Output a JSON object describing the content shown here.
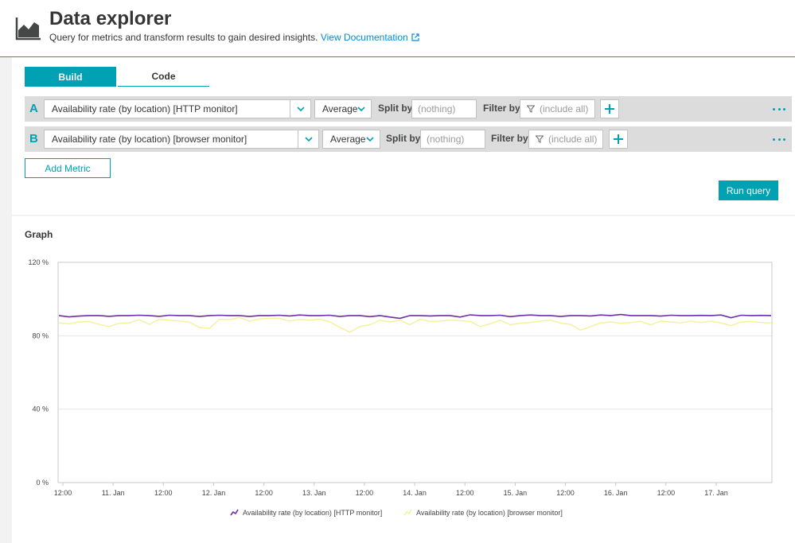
{
  "header": {
    "title": "Data explorer",
    "subtitle": "Query for metrics and transform results to gain desired insights.",
    "doc_link": "View Documentation"
  },
  "tabs": [
    {
      "label": "Build",
      "active": true
    },
    {
      "label": "Code",
      "active": false
    }
  ],
  "queries": [
    {
      "letter": "A",
      "metric": "Availability rate (by location) [HTTP monitor]",
      "aggregation": "Average",
      "split_label": "Split by",
      "split_placeholder": "(nothing)",
      "filter_label": "Filter by",
      "filter_placeholder": "(include all)"
    },
    {
      "letter": "B",
      "metric": "Availability rate (by location) [browser monitor]",
      "aggregation": "Average",
      "split_label": "Split by",
      "split_placeholder": "(nothing)",
      "filter_label": "Filter by",
      "filter_placeholder": "(include all)"
    }
  ],
  "buttons": {
    "add_metric": "Add Metric",
    "run_query": "Run query"
  },
  "graph": {
    "title": "Graph"
  },
  "colors": {
    "accent": "#00a1b2",
    "series_a": "#6f2da8",
    "series_b": "#f5f09a"
  },
  "chart_data": {
    "type": "line",
    "x_ticks": [
      "12:00",
      "11. Jan",
      "12:00",
      "12. Jan",
      "12:00",
      "13. Jan",
      "12:00",
      "14. Jan",
      "12:00",
      "15. Jan",
      "12:00",
      "16. Jan",
      "12:00",
      "17. Jan"
    ],
    "y_ticks": [
      "120 %",
      "80 %",
      "40 %",
      "0 %"
    ],
    "ylim": [
      0,
      120
    ],
    "grid": true,
    "legend_position": "bottom",
    "series": [
      {
        "name": "Availability rate (by location) [HTTP monitor]",
        "values": [
          91,
          90.3,
          90.7,
          91,
          91,
          90.6,
          91,
          91,
          91.2,
          91,
          90.6,
          91.2,
          91,
          91,
          90.5,
          91,
          91.2,
          91,
          91,
          90.5,
          91,
          91,
          91.2,
          90.8,
          91.3,
          91,
          91,
          91.2,
          90.5,
          91,
          91,
          90.4,
          91,
          90.2,
          89.5,
          91,
          91,
          90.8,
          91,
          91,
          90.2,
          91.4,
          91,
          91,
          91.2,
          90.4,
          91,
          91.3,
          91,
          91,
          90.5,
          91,
          91,
          90.8,
          91.3,
          91,
          91.6,
          91,
          91,
          91,
          90.7,
          91.2,
          91,
          91,
          91.1,
          91,
          91.3,
          89.8,
          91.2,
          91,
          91.1,
          91
        ]
      },
      {
        "name": "Availability rate (by location) [browser monitor]",
        "values": [
          87,
          86.5,
          87.5,
          87.8,
          86.2,
          85,
          86.8,
          87,
          88.8,
          86.2,
          89,
          88.5,
          88,
          87.5,
          84.5,
          84,
          89,
          88.8,
          90,
          88,
          89.2,
          89.5,
          89.5,
          88,
          89,
          88.5,
          89,
          87.6,
          84.5,
          82,
          85,
          86,
          88.5,
          87.5,
          88.5,
          86,
          89,
          87.8,
          88,
          88.5,
          88.2,
          87.8,
          85,
          86.5,
          88.5,
          86,
          86.8,
          87.2,
          88,
          88.5,
          87,
          86.2,
          83,
          85,
          87,
          87.5,
          86.8,
          87.2,
          87.8,
          86,
          88,
          87.5,
          87,
          88,
          87.2,
          88,
          87,
          85.5,
          87.5,
          87.8,
          87.2,
          87
        ]
      }
    ]
  }
}
